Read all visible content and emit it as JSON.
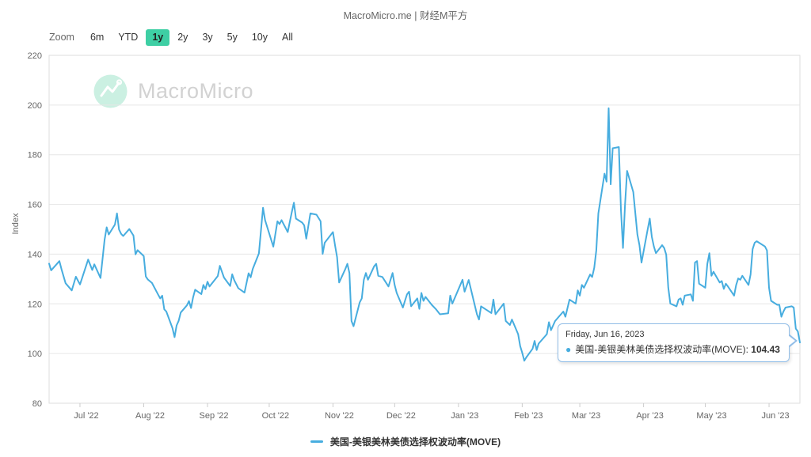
{
  "page": {
    "subtitle": "MacroMicro.me | 财经M平方"
  },
  "toolbar": {
    "zoom_label": "Zoom",
    "ranges": [
      "6m",
      "YTD",
      "1y",
      "2y",
      "3y",
      "5y",
      "10y",
      "All"
    ],
    "active": "1y"
  },
  "watermark": {
    "text": "MacroMicro"
  },
  "colors": {
    "line": "#47ADDF",
    "active_range_bg": "#3ECFA4",
    "tooltip_border": "#92bee8",
    "grid": "#e6e6e6",
    "axis_border": "#dedede",
    "watermark_circle": "#cbf0e2"
  },
  "tooltip": {
    "date": "Friday, Jun 16, 2023",
    "series_label": "美国-美银美林美债选择权波动率(MOVE):",
    "value": "104.43"
  },
  "legend": {
    "items": [
      {
        "label": "美国-美银美林美债选择权波动率(MOVE)"
      }
    ]
  },
  "chart_data": {
    "type": "line",
    "subtitle": "MacroMicro.me | 财经M平方",
    "ylabel": "Index",
    "ylim": [
      80,
      220
    ],
    "ytick_step": 20,
    "grid": true,
    "legend_position": "bottom-center",
    "x_ticks": [
      {
        "label": "Jul '22",
        "date": "2022-07-01"
      },
      {
        "label": "Aug '22",
        "date": "2022-08-01"
      },
      {
        "label": "Sep '22",
        "date": "2022-09-01"
      },
      {
        "label": "Oct '22",
        "date": "2022-10-01"
      },
      {
        "label": "Nov '22",
        "date": "2022-11-01"
      },
      {
        "label": "Dec '22",
        "date": "2022-12-01"
      },
      {
        "label": "Jan '23",
        "date": "2023-01-01"
      },
      {
        "label": "Feb '23",
        "date": "2023-02-01"
      },
      {
        "label": "Mar '23",
        "date": "2023-03-01"
      },
      {
        "label": "Apr '23",
        "date": "2023-04-01"
      },
      {
        "label": "May '23",
        "date": "2023-05-01"
      },
      {
        "label": "Jun '23",
        "date": "2023-06-01"
      }
    ],
    "highlighted_point": {
      "date": "2023-06-16",
      "value": 104.43
    },
    "series": [
      {
        "name": "美国-美银美林美债选择权波动率(MOVE)",
        "color": "#47ADDF",
        "points": [
          [
            "2022-06-16",
            136.2
          ],
          [
            "2022-06-17",
            133.5
          ],
          [
            "2022-06-21",
            137.2
          ],
          [
            "2022-06-22",
            134.0
          ],
          [
            "2022-06-24",
            128.3
          ],
          [
            "2022-06-27",
            125.4
          ],
          [
            "2022-06-29",
            130.9
          ],
          [
            "2022-07-01",
            127.8
          ],
          [
            "2022-07-05",
            137.8
          ],
          [
            "2022-07-07",
            133.6
          ],
          [
            "2022-07-08",
            135.9
          ],
          [
            "2022-07-11",
            130.4
          ],
          [
            "2022-07-13",
            145.9
          ],
          [
            "2022-07-14",
            150.8
          ],
          [
            "2022-07-15",
            147.9
          ],
          [
            "2022-07-18",
            151.9
          ],
          [
            "2022-07-19",
            156.4
          ],
          [
            "2022-07-20",
            149.9
          ],
          [
            "2022-07-21",
            148.2
          ],
          [
            "2022-07-22",
            147.3
          ],
          [
            "2022-07-25",
            150.1
          ],
          [
            "2022-07-26",
            148.8
          ],
          [
            "2022-07-27",
            147.5
          ],
          [
            "2022-07-28",
            139.9
          ],
          [
            "2022-07-29",
            141.6
          ],
          [
            "2022-08-01",
            139.2
          ],
          [
            "2022-08-02",
            131.0
          ],
          [
            "2022-08-03",
            129.8
          ],
          [
            "2022-08-05",
            128.4
          ],
          [
            "2022-08-08",
            123.7
          ],
          [
            "2022-08-09",
            122.2
          ],
          [
            "2022-08-10",
            123.3
          ],
          [
            "2022-08-11",
            117.8
          ],
          [
            "2022-08-12",
            116.9
          ],
          [
            "2022-08-15",
            110.2
          ],
          [
            "2022-08-16",
            106.6
          ],
          [
            "2022-08-17",
            111.3
          ],
          [
            "2022-08-18",
            113.2
          ],
          [
            "2022-08-19",
            116.5
          ],
          [
            "2022-08-22",
            119.4
          ],
          [
            "2022-08-23",
            121.1
          ],
          [
            "2022-08-24",
            118.3
          ],
          [
            "2022-08-25",
            122.6
          ],
          [
            "2022-08-26",
            125.7
          ],
          [
            "2022-08-29",
            123.9
          ],
          [
            "2022-08-30",
            127.6
          ],
          [
            "2022-08-31",
            125.9
          ],
          [
            "2022-09-01",
            128.9
          ],
          [
            "2022-09-02",
            127.0
          ],
          [
            "2022-09-06",
            131.2
          ],
          [
            "2022-09-07",
            135.3
          ],
          [
            "2022-09-09",
            130.6
          ],
          [
            "2022-09-12",
            127.2
          ],
          [
            "2022-09-13",
            131.9
          ],
          [
            "2022-09-14",
            129.5
          ],
          [
            "2022-09-16",
            126.3
          ],
          [
            "2022-09-19",
            124.5
          ],
          [
            "2022-09-21",
            132.3
          ],
          [
            "2022-09-22",
            130.7
          ],
          [
            "2022-09-23",
            134.0
          ],
          [
            "2022-09-26",
            140.3
          ],
          [
            "2022-09-28",
            158.7
          ],
          [
            "2022-09-29",
            153.7
          ],
          [
            "2022-10-03",
            143.0
          ],
          [
            "2022-10-05",
            153.2
          ],
          [
            "2022-10-06",
            152.1
          ],
          [
            "2022-10-07",
            153.7
          ],
          [
            "2022-10-10",
            148.9
          ],
          [
            "2022-10-12",
            157.0
          ],
          [
            "2022-10-13",
            160.7
          ],
          [
            "2022-10-14",
            154.3
          ],
          [
            "2022-10-17",
            152.7
          ],
          [
            "2022-10-18",
            151.6
          ],
          [
            "2022-10-19",
            146.2
          ],
          [
            "2022-10-21",
            156.4
          ],
          [
            "2022-10-24",
            155.9
          ],
          [
            "2022-10-26",
            153.2
          ],
          [
            "2022-10-27",
            140.1
          ],
          [
            "2022-10-28",
            144.6
          ],
          [
            "2022-10-31",
            147.8
          ],
          [
            "2022-11-01",
            148.9
          ],
          [
            "2022-11-02",
            143.6
          ],
          [
            "2022-11-03",
            138.8
          ],
          [
            "2022-11-04",
            128.6
          ],
          [
            "2022-11-07",
            134.0
          ],
          [
            "2022-11-08",
            136.1
          ],
          [
            "2022-11-09",
            132.4
          ],
          [
            "2022-11-10",
            113.1
          ],
          [
            "2022-11-11",
            111.0
          ],
          [
            "2022-11-14",
            120.6
          ],
          [
            "2022-11-15",
            122.2
          ],
          [
            "2022-11-16",
            129.7
          ],
          [
            "2022-11-17",
            132.4
          ],
          [
            "2022-11-18",
            129.7
          ],
          [
            "2022-11-21",
            135.1
          ],
          [
            "2022-11-22",
            136.1
          ],
          [
            "2022-11-23",
            131.3
          ],
          [
            "2022-11-25",
            130.8
          ],
          [
            "2022-11-28",
            127.0
          ],
          [
            "2022-11-30",
            132.4
          ],
          [
            "2022-12-01",
            127.6
          ],
          [
            "2022-12-02",
            124.4
          ],
          [
            "2022-12-05",
            118.5
          ],
          [
            "2022-12-06",
            121.2
          ],
          [
            "2022-12-07",
            123.8
          ],
          [
            "2022-12-08",
            124.9
          ],
          [
            "2022-12-09",
            119.0
          ],
          [
            "2022-12-12",
            122.2
          ],
          [
            "2022-12-13",
            118.0
          ],
          [
            "2022-12-14",
            124.4
          ],
          [
            "2022-12-15",
            121.2
          ],
          [
            "2022-12-16",
            122.8
          ],
          [
            "2022-12-19",
            119.6
          ],
          [
            "2022-12-21",
            117.9
          ],
          [
            "2022-12-23",
            115.8
          ],
          [
            "2022-12-27",
            116.2
          ],
          [
            "2022-12-28",
            123.3
          ],
          [
            "2022-12-29",
            120.1
          ],
          [
            "2022-12-30",
            122.0
          ],
          [
            "2023-01-03",
            129.7
          ],
          [
            "2023-01-04",
            124.9
          ],
          [
            "2023-01-06",
            129.6
          ],
          [
            "2023-01-10",
            115.8
          ],
          [
            "2023-01-11",
            113.7
          ],
          [
            "2023-01-12",
            119.0
          ],
          [
            "2023-01-17",
            116.3
          ],
          [
            "2023-01-18",
            121.7
          ],
          [
            "2023-01-19",
            115.8
          ],
          [
            "2023-01-23",
            120.1
          ],
          [
            "2023-01-24",
            113.1
          ],
          [
            "2023-01-26",
            111.5
          ],
          [
            "2023-01-27",
            113.7
          ],
          [
            "2023-01-30",
            107.8
          ],
          [
            "2023-01-31",
            103.0
          ],
          [
            "2023-02-01",
            100.3
          ],
          [
            "2023-02-02",
            97.1
          ],
          [
            "2023-02-03",
            98.5
          ],
          [
            "2023-02-06",
            101.9
          ],
          [
            "2023-02-07",
            105.1
          ],
          [
            "2023-02-08",
            101.4
          ],
          [
            "2023-02-09",
            104.0
          ],
          [
            "2023-02-13",
            107.8
          ],
          [
            "2023-02-14",
            112.6
          ],
          [
            "2023-02-15",
            109.4
          ],
          [
            "2023-02-17",
            113.1
          ],
          [
            "2023-02-21",
            116.9
          ],
          [
            "2023-02-22",
            114.8
          ],
          [
            "2023-02-24",
            121.7
          ],
          [
            "2023-02-27",
            120.1
          ],
          [
            "2023-02-28",
            125.4
          ],
          [
            "2023-03-01",
            123.3
          ],
          [
            "2023-03-02",
            127.6
          ],
          [
            "2023-03-03",
            126.5
          ],
          [
            "2023-03-06",
            131.8
          ],
          [
            "2023-03-07",
            130.8
          ],
          [
            "2023-03-08",
            134.5
          ],
          [
            "2023-03-09",
            141.5
          ],
          [
            "2023-03-10",
            156.4
          ],
          [
            "2023-03-13",
            172.4
          ],
          [
            "2023-03-14",
            169.2
          ],
          [
            "2023-03-15",
            198.7
          ],
          [
            "2023-03-16",
            168.1
          ],
          [
            "2023-03-17",
            182.6
          ],
          [
            "2023-03-20",
            183.1
          ],
          [
            "2023-03-21",
            158.0
          ],
          [
            "2023-03-22",
            142.5
          ],
          [
            "2023-03-23",
            160.0
          ],
          [
            "2023-03-24",
            173.5
          ],
          [
            "2023-03-27",
            165.0
          ],
          [
            "2023-03-28",
            156.4
          ],
          [
            "2023-03-29",
            147.9
          ],
          [
            "2023-03-30",
            143.6
          ],
          [
            "2023-03-31",
            136.6
          ],
          [
            "2023-04-03",
            150.0
          ],
          [
            "2023-04-04",
            154.3
          ],
          [
            "2023-04-05",
            147.0
          ],
          [
            "2023-04-06",
            143.1
          ],
          [
            "2023-04-07",
            140.4
          ],
          [
            "2023-04-10",
            143.6
          ],
          [
            "2023-04-11",
            142.5
          ],
          [
            "2023-04-12",
            139.8
          ],
          [
            "2023-04-13",
            126.5
          ],
          [
            "2023-04-14",
            120.1
          ],
          [
            "2023-04-17",
            119.0
          ],
          [
            "2023-04-18",
            121.7
          ],
          [
            "2023-04-19",
            122.2
          ],
          [
            "2023-04-20",
            119.6
          ],
          [
            "2023-04-21",
            123.3
          ],
          [
            "2023-04-24",
            123.8
          ],
          [
            "2023-04-25",
            121.2
          ],
          [
            "2023-04-26",
            136.6
          ],
          [
            "2023-04-27",
            137.2
          ],
          [
            "2023-04-28",
            128.1
          ],
          [
            "2023-05-01",
            126.5
          ],
          [
            "2023-05-02",
            136.1
          ],
          [
            "2023-05-03",
            140.4
          ],
          [
            "2023-05-04",
            131.3
          ],
          [
            "2023-05-05",
            132.9
          ],
          [
            "2023-05-08",
            128.6
          ],
          [
            "2023-05-09",
            129.2
          ],
          [
            "2023-05-10",
            126.0
          ],
          [
            "2023-05-11",
            128.1
          ],
          [
            "2023-05-12",
            127.0
          ],
          [
            "2023-05-15",
            123.3
          ],
          [
            "2023-05-16",
            127.6
          ],
          [
            "2023-05-17",
            130.2
          ],
          [
            "2023-05-18",
            129.7
          ],
          [
            "2023-05-19",
            131.3
          ],
          [
            "2023-05-22",
            127.6
          ],
          [
            "2023-05-23",
            131.8
          ],
          [
            "2023-05-24",
            142.0
          ],
          [
            "2023-05-25",
            144.6
          ],
          [
            "2023-05-26",
            145.2
          ],
          [
            "2023-05-30",
            143.1
          ],
          [
            "2023-05-31",
            141.5
          ],
          [
            "2023-06-01",
            126.5
          ],
          [
            "2023-06-02",
            121.2
          ],
          [
            "2023-06-05",
            119.6
          ],
          [
            "2023-06-06",
            119.6
          ],
          [
            "2023-06-07",
            114.8
          ],
          [
            "2023-06-08",
            116.9
          ],
          [
            "2023-06-09",
            118.5
          ],
          [
            "2023-06-12",
            119.0
          ],
          [
            "2023-06-13",
            118.5
          ],
          [
            "2023-06-14",
            110.0
          ],
          [
            "2023-06-15",
            108.9
          ],
          [
            "2023-06-16",
            104.43
          ]
        ]
      }
    ]
  }
}
